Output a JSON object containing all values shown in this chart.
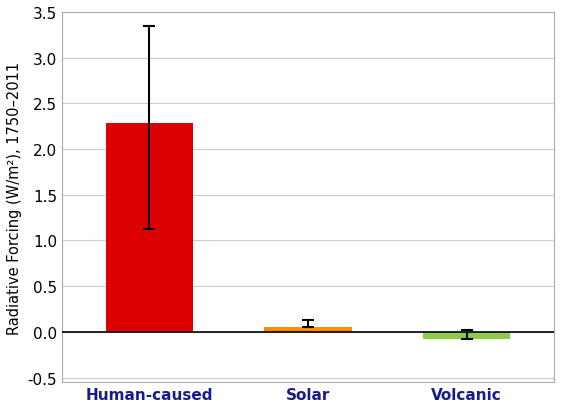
{
  "categories": [
    "Human-caused",
    "Solar",
    "Volcanic"
  ],
  "values": [
    2.29,
    0.05,
    -0.08
  ],
  "bar_colors": [
    "#dd0000",
    "#ff8c00",
    "#8fcc45"
  ],
  "error_lower": [
    1.16,
    0.0,
    0.0
  ],
  "error_upper": [
    1.06,
    0.08,
    0.1
  ],
  "ylabel": "Radiative Forcing (W/m²), 1750–2011",
  "ylim": [
    -0.55,
    3.5
  ],
  "yticks": [
    -0.5,
    0.0,
    0.5,
    1.0,
    1.5,
    2.0,
    2.5,
    3.0,
    3.5
  ],
  "bar_width": 0.55,
  "background_color": "#ffffff",
  "grid_color": "#cccccc",
  "ylabel_fontsize": 10.5,
  "tick_fontsize": 11
}
